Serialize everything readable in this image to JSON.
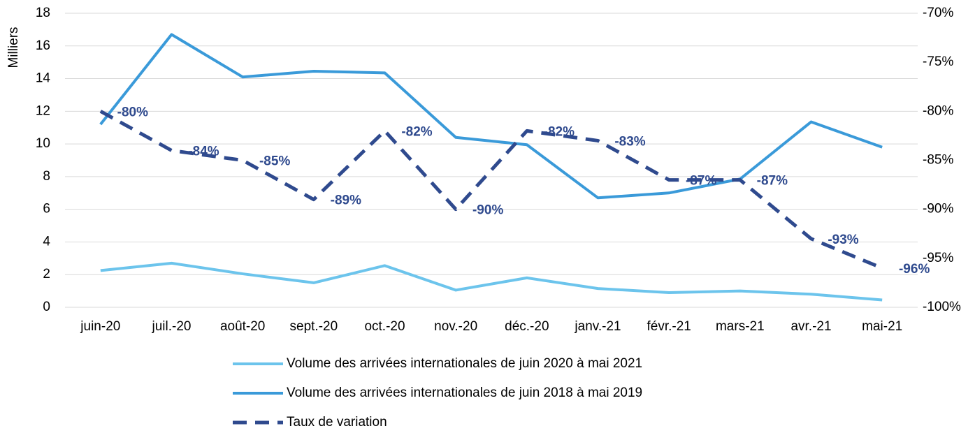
{
  "chart_data": {
    "type": "line",
    "categories": [
      "juin-20",
      "juil.-20",
      "août-20",
      "sept.-20",
      "oct.-20",
      "nov.-20",
      "déc.-20",
      "janv.-21",
      "févr.-21",
      "mars-21",
      "avr.-21",
      "mai-21"
    ],
    "ylabel": "Milliers",
    "ylim": [
      0,
      18
    ],
    "yticks": [
      0,
      2,
      4,
      6,
      8,
      10,
      12,
      14,
      16,
      18
    ],
    "y2lim": [
      -100,
      -70
    ],
    "y2ticks": [
      {
        "value": -100,
        "label": "-100%"
      },
      {
        "value": -95,
        "label": "-95%"
      },
      {
        "value": -90,
        "label": "-90%"
      },
      {
        "value": -85,
        "label": "-85%"
      },
      {
        "value": -80,
        "label": "-80%"
      },
      {
        "value": -75,
        "label": "-75%"
      },
      {
        "value": -70,
        "label": "-70%"
      }
    ],
    "grid": true,
    "legend": "bottom",
    "series": [
      {
        "name": "Volume des arrivées internationales de juin 2020 à mai 2021",
        "color": "#6cc4ec",
        "style": "solid",
        "values": [
          2.25,
          2.7,
          2.05,
          1.5,
          2.55,
          1.05,
          1.8,
          1.15,
          0.9,
          1.0,
          0.8,
          0.45
        ]
      },
      {
        "name": "Volume des arrivées internationales de juin 2018 à mai 2019",
        "color": "#3a9ad9",
        "style": "solid",
        "values": [
          11.2,
          16.7,
          14.1,
          14.45,
          14.35,
          10.4,
          9.95,
          6.7,
          7.0,
          7.85,
          11.35,
          9.8
        ]
      },
      {
        "name": "Taux de variation",
        "color": "#2f4a8e",
        "style": "dashed",
        "axis": "y2",
        "values": [
          -80,
          -84,
          -85,
          -89,
          -82,
          -90,
          -82,
          -83,
          -87,
          -87,
          -93,
          -96
        ],
        "value_labels": [
          "-80%",
          "-84%",
          "-85%",
          "-89%",
          "-82%",
          "-90%",
          "-82%",
          "-83%",
          "-87%",
          "-87%",
          "-93%",
          "-96%"
        ]
      }
    ]
  }
}
